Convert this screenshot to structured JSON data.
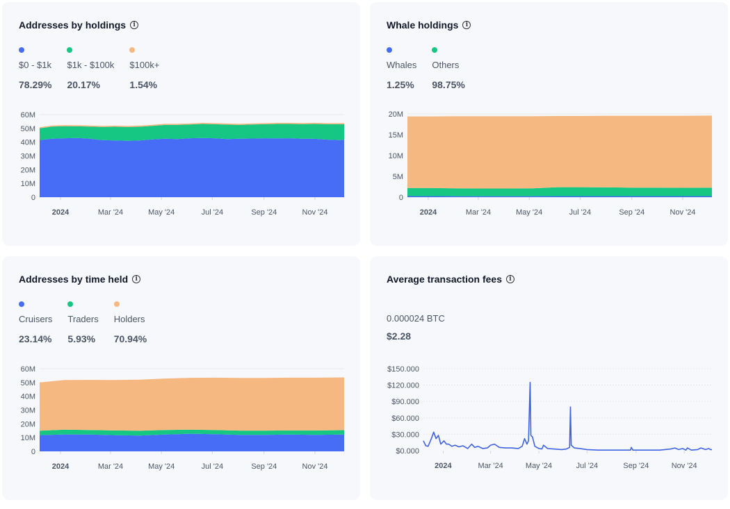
{
  "colors": {
    "blue": "#476cf5",
    "green": "#16c784",
    "orange": "#f5b880",
    "line": "#3f63e0"
  },
  "chart_data": [
    {
      "type": "area",
      "stacked": true,
      "title": "Addresses by holdings",
      "ylim": [
        0,
        60000000
      ],
      "yticks": [
        "0",
        "10M",
        "20M",
        "30M",
        "40M",
        "50M",
        "60M"
      ],
      "xticks": [
        {
          "label": "2024",
          "date": "2024-01-01",
          "bold": true
        },
        {
          "label": "Mar '24",
          "date": "2024-03-01"
        },
        {
          "label": "May '24",
          "date": "2024-05-01"
        },
        {
          "label": "Jul '24",
          "date": "2024-07-01"
        },
        {
          "label": "Sep '24",
          "date": "2024-09-01"
        },
        {
          "label": "Nov '24",
          "date": "2024-11-01"
        }
      ],
      "x": [
        "2023-12-07",
        "2023-12-22",
        "2024-01-06",
        "2024-01-21",
        "2024-02-05",
        "2024-02-20",
        "2024-03-06",
        "2024-03-21",
        "2024-04-05",
        "2024-04-20",
        "2024-05-05",
        "2024-05-20",
        "2024-06-04",
        "2024-06-19",
        "2024-07-04",
        "2024-07-19",
        "2024-08-03",
        "2024-08-18",
        "2024-09-02",
        "2024-09-17",
        "2024-10-02",
        "2024-10-17",
        "2024-11-01",
        "2024-11-16",
        "2024-12-01",
        "2024-12-06"
      ],
      "series": [
        {
          "name": "$0 - $1k",
          "share": "78.29%",
          "color": "blue",
          "values": [
            41.5,
            42.5,
            42.8,
            43.0,
            42.5,
            41.5,
            41.2,
            41.0,
            41.2,
            42.0,
            42.5,
            42.2,
            42.8,
            43.0,
            42.8,
            42.2,
            42.5,
            42.6,
            42.8,
            42.7,
            42.8,
            42.5,
            42.4,
            41.8,
            41.5,
            41.8
          ]
        },
        {
          "name": "$1k - $100k",
          "share": "20.17%",
          "color": "green",
          "values": [
            8.5,
            8.8,
            8.8,
            8.5,
            8.8,
            9.5,
            10.0,
            10.0,
            10.0,
            9.8,
            10.0,
            10.3,
            10.0,
            10.2,
            10.2,
            10.5,
            10.0,
            10.2,
            10.2,
            10.5,
            10.4,
            10.6,
            10.8,
            11.2,
            11.5,
            11.2
          ]
        },
        {
          "name": "$100k+",
          "share": "1.54%",
          "color": "orange",
          "values": [
            0.8,
            0.8,
            0.8,
            0.8,
            0.8,
            0.8,
            0.8,
            0.8,
            0.8,
            0.8,
            0.8,
            0.8,
            0.8,
            0.8,
            0.8,
            0.8,
            0.8,
            0.8,
            0.8,
            0.8,
            0.8,
            0.8,
            0.8,
            0.8,
            0.8,
            0.8
          ]
        }
      ],
      "unit_multiplier": 1000000
    },
    {
      "type": "area",
      "stacked": true,
      "title": "Whale holdings",
      "ylim": [
        0,
        20000000
      ],
      "yticks": [
        "0",
        "5M",
        "10M",
        "15M",
        "20M"
      ],
      "xticks": [
        {
          "label": "2024",
          "date": "2024-01-01",
          "bold": true
        },
        {
          "label": "Mar '24",
          "date": "2024-03-01"
        },
        {
          "label": "May '24",
          "date": "2024-05-01"
        },
        {
          "label": "Jul '24",
          "date": "2024-07-01"
        },
        {
          "label": "Sep '24",
          "date": "2024-09-01"
        },
        {
          "label": "Nov '24",
          "date": "2024-11-01"
        }
      ],
      "x": [
        "2023-12-07",
        "2024-01-06",
        "2024-02-05",
        "2024-03-06",
        "2024-04-05",
        "2024-05-05",
        "2024-06-04",
        "2024-07-04",
        "2024-08-03",
        "2024-09-02",
        "2024-10-02",
        "2024-11-01",
        "2024-12-06"
      ],
      "series": [
        {
          "name": "Whales",
          "share": "1.25%",
          "color": "blue",
          "values": [
            0.25,
            0.25,
            0.24,
            0.24,
            0.24,
            0.24,
            0.25,
            0.25,
            0.25,
            0.25,
            0.25,
            0.25,
            0.25
          ]
        },
        {
          "name": "Others",
          "share": "98.75%",
          "color": "green",
          "values": [
            1.95,
            1.95,
            1.9,
            1.85,
            1.85,
            1.9,
            2.15,
            2.15,
            2.1,
            2.05,
            2.05,
            2.0,
            2.05
          ]
        },
        {
          "name": "",
          "color": "orange",
          "values": [
            17.2,
            17.2,
            17.3,
            17.35,
            17.35,
            17.3,
            17.1,
            17.1,
            17.2,
            17.25,
            17.25,
            17.3,
            17.3
          ]
        }
      ],
      "unit_multiplier": 1000000
    },
    {
      "type": "area",
      "stacked": true,
      "title": "Addresses by time held",
      "ylim": [
        0,
        60000000
      ],
      "yticks": [
        "0",
        "10M",
        "20M",
        "30M",
        "40M",
        "50M",
        "60M"
      ],
      "xticks": [
        {
          "label": "2024",
          "date": "2024-01-01",
          "bold": true
        },
        {
          "label": "Mar '24",
          "date": "2024-03-01"
        },
        {
          "label": "May '24",
          "date": "2024-05-01"
        },
        {
          "label": "Jul '24",
          "date": "2024-07-01"
        },
        {
          "label": "Sep '24",
          "date": "2024-09-01"
        },
        {
          "label": "Nov '24",
          "date": "2024-11-01"
        }
      ],
      "x": [
        "2023-12-07",
        "2024-01-06",
        "2024-02-05",
        "2024-03-06",
        "2024-04-05",
        "2024-05-05",
        "2024-06-04",
        "2024-07-04",
        "2024-08-03",
        "2024-09-02",
        "2024-10-02",
        "2024-11-01",
        "2024-12-06"
      ],
      "series": [
        {
          "name": "Cruisers",
          "share": "23.14%",
          "color": "blue",
          "values": [
            11.8,
            12.3,
            12.2,
            11.8,
            11.5,
            12.2,
            12.8,
            12.5,
            12.0,
            12.0,
            12.2,
            12.0,
            12.2
          ]
        },
        {
          "name": "Traders",
          "share": "5.93%",
          "color": "green",
          "values": [
            3.2,
            3.5,
            3.3,
            3.4,
            3.5,
            3.3,
            3.0,
            3.0,
            3.1,
            3.1,
            3.0,
            3.2,
            3.2
          ]
        },
        {
          "name": "Holders",
          "share": "70.94%",
          "color": "orange",
          "values": [
            35.0,
            36.0,
            36.4,
            36.6,
            37.1,
            37.4,
            37.6,
            38.0,
            38.2,
            38.2,
            38.3,
            38.3,
            38.3
          ]
        }
      ],
      "unit_multiplier": 1000000
    },
    {
      "type": "line",
      "title": "Average transaction fees",
      "btc": "0.000024 BTC",
      "usd": "$2.28",
      "ylim": [
        0,
        150
      ],
      "yticks": [
        "$0.000",
        "$30.000",
        "$60.000",
        "$90.000",
        "$120.000",
        "$150.000"
      ],
      "xticks": [
        {
          "label": "2024",
          "date": "2024-01-01",
          "bold": true
        },
        {
          "label": "Mar '24",
          "date": "2024-03-01"
        },
        {
          "label": "May '24",
          "date": "2024-05-01"
        },
        {
          "label": "Jul '24",
          "date": "2024-07-01"
        },
        {
          "label": "Sep '24",
          "date": "2024-09-01"
        },
        {
          "label": "Nov '24",
          "date": "2024-11-01"
        }
      ],
      "x": [
        "2023-12-07",
        "2023-12-10",
        "2023-12-13",
        "2023-12-17",
        "2023-12-20",
        "2023-12-23",
        "2023-12-26",
        "2023-12-29",
        "2024-01-02",
        "2024-01-05",
        "2024-01-08",
        "2024-01-12",
        "2024-01-16",
        "2024-01-21",
        "2024-01-26",
        "2024-02-01",
        "2024-02-06",
        "2024-02-10",
        "2024-02-14",
        "2024-02-20",
        "2024-02-26",
        "2024-03-01",
        "2024-03-06",
        "2024-03-12",
        "2024-03-20",
        "2024-03-28",
        "2024-04-05",
        "2024-04-10",
        "2024-04-13",
        "2024-04-16",
        "2024-04-18",
        "2024-04-20",
        "2024-04-21",
        "2024-04-23",
        "2024-04-26",
        "2024-05-01",
        "2024-05-05",
        "2024-05-07",
        "2024-05-12",
        "2024-05-20",
        "2024-05-30",
        "2024-06-05",
        "2024-06-09",
        "2024-06-10",
        "2024-06-11",
        "2024-06-15",
        "2024-06-22",
        "2024-07-01",
        "2024-07-15",
        "2024-08-01",
        "2024-08-20",
        "2024-08-25",
        "2024-08-26",
        "2024-08-28",
        "2024-09-15",
        "2024-10-01",
        "2024-10-15",
        "2024-10-20",
        "2024-10-25",
        "2024-10-30",
        "2024-11-03",
        "2024-11-05",
        "2024-11-10",
        "2024-11-18",
        "2024-11-22",
        "2024-11-28",
        "2024-12-02",
        "2024-12-04",
        "2024-12-06"
      ],
      "series": [
        {
          "values": [
            18,
            9,
            8,
            22,
            34,
            22,
            28,
            12,
            18,
            12,
            12,
            8,
            10,
            7,
            9,
            4,
            12,
            6,
            8,
            4,
            5,
            10,
            12,
            6,
            5,
            5,
            4,
            8,
            22,
            12,
            18,
            125,
            28,
            25,
            8,
            4,
            3,
            10,
            4,
            3,
            2,
            3,
            6,
            80,
            10,
            5,
            4,
            2,
            1,
            1,
            1,
            1,
            6,
            1,
            1,
            1,
            3,
            5,
            2,
            4,
            1,
            5,
            1,
            2,
            5,
            2,
            4,
            2,
            2
          ]
        }
      ]
    }
  ]
}
